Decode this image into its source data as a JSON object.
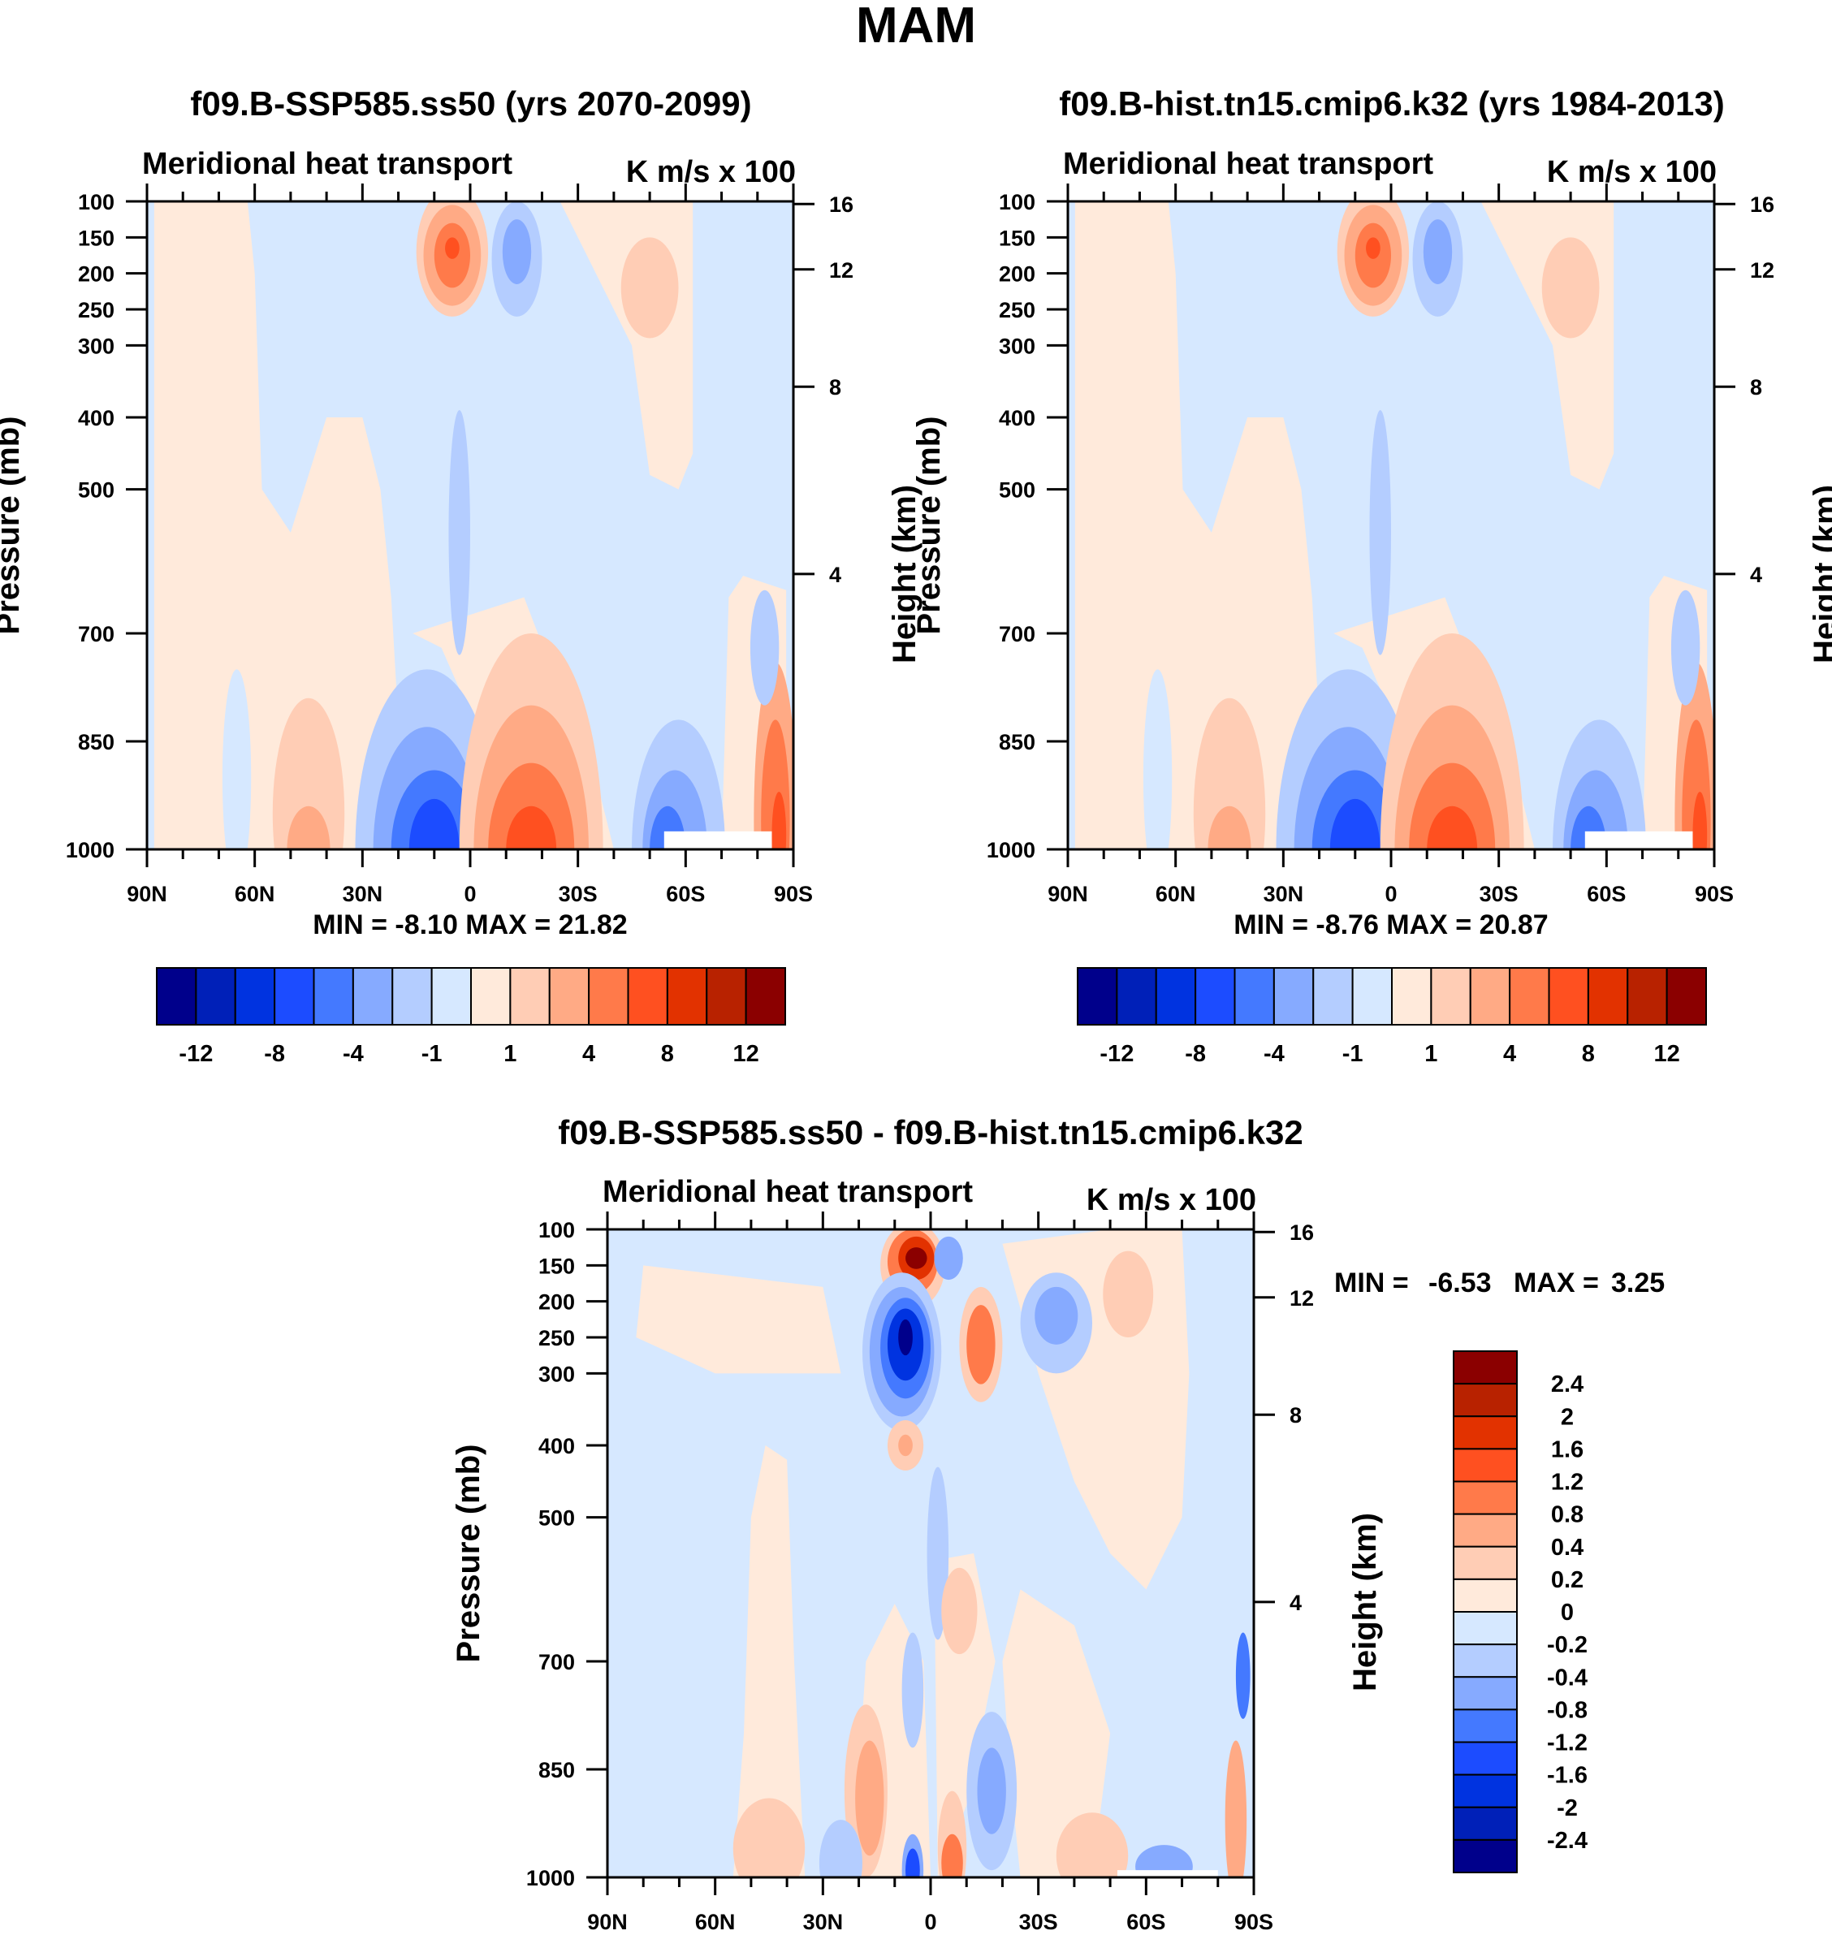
{
  "figure_title": "MAM",
  "colors": [
    "#00008b",
    "#0020b8",
    "#0033e0",
    "#1c4cff",
    "#4479ff",
    "#86aaff",
    "#b4cdff",
    "#d6e8ff",
    "#ffeadb",
    "#ffcdb5",
    "#ffaa85",
    "#ff7a4a",
    "#ff5020",
    "#e23200",
    "#b82200",
    "#8b0000"
  ],
  "chart_data": [
    {
      "type": "heatmap",
      "id": "ssp",
      "title": "f09.B-SSP585.ss50 (yrs 2070-2099)",
      "left_string": "Meridional heat transport",
      "right_string": "K m/s x 100",
      "ylabel": "Pressure (mb)",
      "ylabel_right": "Height (km)",
      "yticks": [
        "100",
        "150",
        "200",
        "250",
        "300",
        "400",
        "500",
        "700",
        "850",
        "1000"
      ],
      "yticks_right": [
        "16",
        "12",
        "8",
        "4"
      ],
      "xticks": [
        "90N",
        "60N",
        "30N",
        "0",
        "30S",
        "60S",
        "90S"
      ],
      "xlim": [
        90,
        -90
      ],
      "ylim": [
        100,
        1000
      ],
      "min_label": "MIN =",
      "min_value": "-8.10",
      "max_label": "MAX =",
      "max_value": "21.82",
      "colorbar_labels": [
        "-12",
        "-8",
        "-4",
        "-1",
        "1",
        "4",
        "8",
        "12"
      ]
    },
    {
      "type": "heatmap",
      "id": "hist",
      "title": "f09.B-hist.tn15.cmip6.k32 (yrs 1984-2013)",
      "left_string": "Meridional heat transport",
      "right_string": "K m/s x 100",
      "ylabel": "Pressure (mb)",
      "ylabel_right": "Height (km)",
      "yticks": [
        "100",
        "150",
        "200",
        "250",
        "300",
        "400",
        "500",
        "700",
        "850",
        "1000"
      ],
      "yticks_right": [
        "16",
        "12",
        "8",
        "4"
      ],
      "xticks": [
        "90N",
        "60N",
        "30N",
        "0",
        "30S",
        "60S",
        "90S"
      ],
      "xlim": [
        90,
        -90
      ],
      "ylim": [
        100,
        1000
      ],
      "min_label": "MIN =",
      "min_value": "-8.76",
      "max_label": "MAX =",
      "max_value": "20.87",
      "colorbar_labels": [
        "-12",
        "-8",
        "-4",
        "-1",
        "1",
        "4",
        "8",
        "12"
      ]
    },
    {
      "type": "heatmap",
      "id": "diff",
      "title": "f09.B-SSP585.ss50 - f09.B-hist.tn15.cmip6.k32",
      "left_string": "Meridional heat transport",
      "right_string": "K m/s x 100",
      "ylabel": "Pressure (mb)",
      "ylabel_right": "Height (km)",
      "yticks": [
        "100",
        "150",
        "200",
        "250",
        "300",
        "400",
        "500",
        "700",
        "850",
        "1000"
      ],
      "yticks_right": [
        "16",
        "12",
        "8",
        "4"
      ],
      "xticks": [
        "90N",
        "60N",
        "30N",
        "0",
        "30S",
        "60S",
        "90S"
      ],
      "xlim": [
        90,
        -90
      ],
      "ylim": [
        100,
        1000
      ],
      "min_label": "MIN =",
      "min_value": "-6.53",
      "max_label": "MAX =",
      "max_value": "3.25",
      "colorbar_labels": [
        "2.4",
        "2",
        "1.6",
        "1.2",
        "0.8",
        "0.4",
        "0.2",
        "0",
        "-0.2",
        "-0.4",
        "-0.8",
        "-1.2",
        "-1.6",
        "-2",
        "-2.4"
      ]
    }
  ]
}
